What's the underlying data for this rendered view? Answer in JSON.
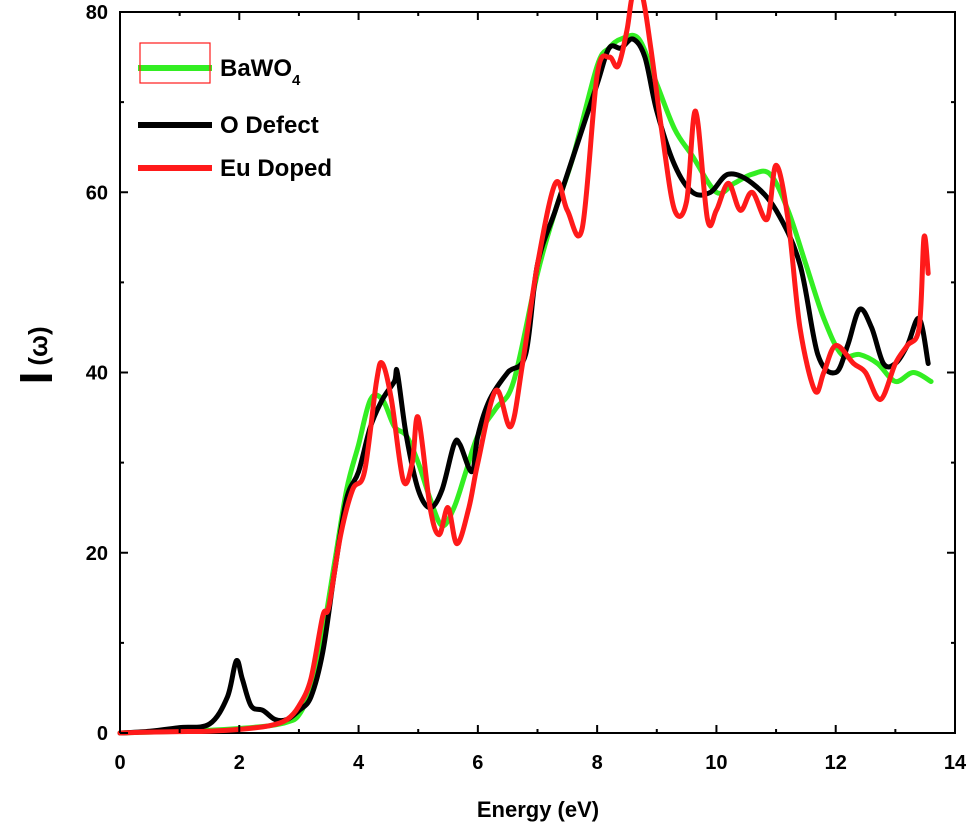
{
  "chart_data": {
    "type": "line",
    "xlabel": "Energy (eV)",
    "ylabel_main": "I",
    "ylabel_sub": "(ω)",
    "xlim": [
      0,
      14
    ],
    "ylim": [
      0,
      80
    ],
    "xticks": [
      0,
      2,
      4,
      6,
      8,
      10,
      12,
      14
    ],
    "yticks": [
      0,
      20,
      40,
      60,
      80
    ],
    "grid": false,
    "legend_placement": "top-left",
    "series": [
      {
        "name": "BaWO",
        "name_sub": "4",
        "color": "#33ee22",
        "x": [
          0,
          0.5,
          1.0,
          1.5,
          2.0,
          2.5,
          2.8,
          3.0,
          3.2,
          3.4,
          3.6,
          3.8,
          4.0,
          4.2,
          4.4,
          4.6,
          4.8,
          5.0,
          5.2,
          5.4,
          5.6,
          5.8,
          6.0,
          6.3,
          6.6,
          7.0,
          7.3,
          7.6,
          8.0,
          8.2,
          8.4,
          8.7,
          9.0,
          9.3,
          9.6,
          10.0,
          10.3,
          10.6,
          10.9,
          11.2,
          11.5,
          11.8,
          12.1,
          12.4,
          12.7,
          13.0,
          13.3,
          13.6
        ],
        "y": [
          0,
          0.1,
          0.2,
          0.3,
          0.5,
          0.8,
          1.2,
          2,
          5,
          11,
          19,
          27,
          32,
          37,
          37,
          34,
          33,
          30,
          26,
          23,
          25,
          29,
          33,
          36,
          39,
          51,
          58,
          64,
          74,
          76,
          77,
          77,
          72,
          67,
          64,
          60,
          61,
          62,
          62,
          58,
          52,
          46,
          42,
          42,
          41,
          39,
          40,
          39
        ]
      },
      {
        "name": "O Defect",
        "color": "#000000",
        "x": [
          0,
          0.5,
          1.0,
          1.5,
          1.8,
          1.95,
          2.05,
          2.2,
          2.4,
          2.6,
          2.8,
          3.0,
          3.2,
          3.4,
          3.6,
          3.8,
          4.0,
          4.2,
          4.4,
          4.6,
          4.65,
          4.8,
          5.0,
          5.2,
          5.4,
          5.6,
          5.7,
          5.9,
          6.0,
          6.2,
          6.5,
          6.8,
          7.0,
          7.3,
          7.6,
          8.0,
          8.2,
          8.4,
          8.6,
          8.8,
          9.0,
          9.3,
          9.6,
          9.9,
          10.2,
          10.6,
          11.0,
          11.4,
          11.7,
          12.0,
          12.2,
          12.4,
          12.6,
          12.8,
          13.0,
          13.2,
          13.4,
          13.55
        ],
        "y": [
          0,
          0.2,
          0.6,
          1,
          4,
          8,
          6,
          3,
          2.5,
          1.5,
          1.5,
          2.5,
          4,
          9,
          18,
          26,
          29,
          34,
          37,
          39,
          40,
          33,
          27,
          25,
          27,
          32,
          32,
          29,
          33,
          37,
          40,
          42,
          52,
          58,
          64,
          72,
          76,
          76,
          77,
          75,
          69,
          63,
          60,
          60,
          62,
          61,
          58,
          52,
          42,
          40,
          43,
          47,
          45,
          41,
          41,
          43,
          46,
          41
        ]
      },
      {
        "name": "Eu Doped",
        "color": "#ff1a1a",
        "x": [
          0,
          0.5,
          1.0,
          1.5,
          2.0,
          2.5,
          2.8,
          3.0,
          3.2,
          3.4,
          3.5,
          3.7,
          3.9,
          4.1,
          4.3,
          4.4,
          4.55,
          4.75,
          4.9,
          5.0,
          5.2,
          5.35,
          5.5,
          5.65,
          5.85,
          6.0,
          6.3,
          6.55,
          6.75,
          7.0,
          7.3,
          7.5,
          7.75,
          8.0,
          8.2,
          8.35,
          8.5,
          8.6,
          8.75,
          8.9,
          9.1,
          9.3,
          9.5,
          9.65,
          9.85,
          10.0,
          10.2,
          10.4,
          10.6,
          10.85,
          11.0,
          11.2,
          11.4,
          11.65,
          11.8,
          12.0,
          12.3,
          12.5,
          12.75,
          13.0,
          13.2,
          13.4,
          13.48,
          13.55
        ],
        "y": [
          0,
          0.1,
          0.15,
          0.2,
          0.4,
          0.8,
          1.5,
          3,
          6,
          13,
          14,
          22,
          27,
          29,
          39,
          41,
          37,
          28,
          30,
          35,
          25,
          22,
          25,
          21,
          25,
          30,
          38,
          34,
          41,
          52,
          61,
          58,
          56,
          73,
          75,
          74,
          78,
          82,
          82,
          76,
          66,
          58,
          59,
          69,
          57,
          58,
          61,
          58,
          60,
          57,
          63,
          57,
          45,
          38,
          40,
          43,
          41,
          40,
          37,
          41,
          43,
          45,
          55,
          51
        ]
      }
    ]
  }
}
